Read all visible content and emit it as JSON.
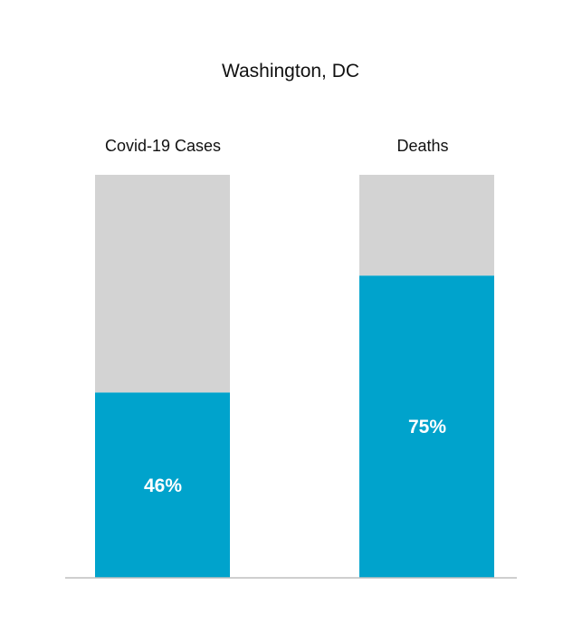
{
  "chart_data": {
    "type": "bar",
    "stacked": true,
    "title": "Washington, DC",
    "xlabel": "",
    "ylabel": "",
    "categories": [
      "Covid-19 Cases",
      "Deaths"
    ],
    "ylim": [
      0,
      100
    ],
    "series": [
      {
        "values": [
          46,
          75
        ],
        "labels": [
          "46%",
          "75%"
        ],
        "color": "#00A3CC"
      },
      {
        "values": [
          54,
          25
        ],
        "color": "#D3D3D3"
      }
    ],
    "grid": false,
    "legend": "none",
    "baseline_color": "#BFBFBF"
  }
}
